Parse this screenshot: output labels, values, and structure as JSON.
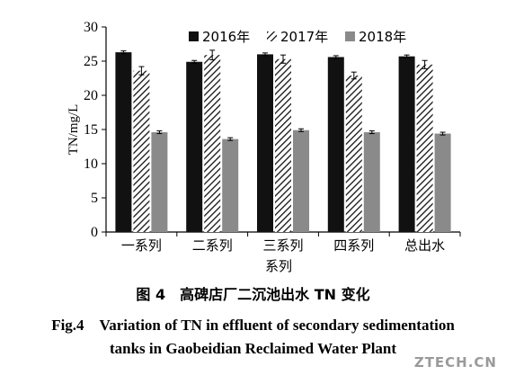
{
  "chart_data": {
    "type": "bar",
    "ylabel": "TN/mg/L",
    "xlabel": "系列",
    "ylim": [
      0,
      30
    ],
    "yticks": [
      0,
      5,
      10,
      15,
      20,
      25,
      30
    ],
    "categories": [
      "一系列",
      "二系列",
      "三系列",
      "四系列",
      "总出水"
    ],
    "series": [
      {
        "name": "2016年",
        "values": [
          26.3,
          24.9,
          26.0,
          25.6,
          25.7
        ],
        "errors": [
          0.2,
          0.2,
          0.2,
          0.2,
          0.2
        ],
        "pattern": "solid-black"
      },
      {
        "name": "2017年",
        "values": [
          23.6,
          25.9,
          25.3,
          22.9,
          24.5
        ],
        "errors": [
          0.6,
          0.7,
          0.6,
          0.5,
          0.6
        ],
        "pattern": "hatched"
      },
      {
        "name": "2018年",
        "values": [
          14.6,
          13.6,
          14.9,
          14.6,
          14.4
        ],
        "errors": [
          0.2,
          0.2,
          0.2,
          0.2,
          0.2
        ],
        "pattern": "solid-gray"
      }
    ],
    "legend_position": "top",
    "grid": false
  },
  "captions": {
    "chinese": "图 4　高碑店厂二沉池出水 TN 变化",
    "english_line1": "Fig.4　Variation of TN in effluent of secondary sedimentation",
    "english_line2": "tanks in Gaobeidian Reclaimed Water Plant"
  },
  "watermark": "ZTECH.CN",
  "colors": {
    "solid": "#111111",
    "gray": "#8a8a8a",
    "hatch": "#111111"
  }
}
